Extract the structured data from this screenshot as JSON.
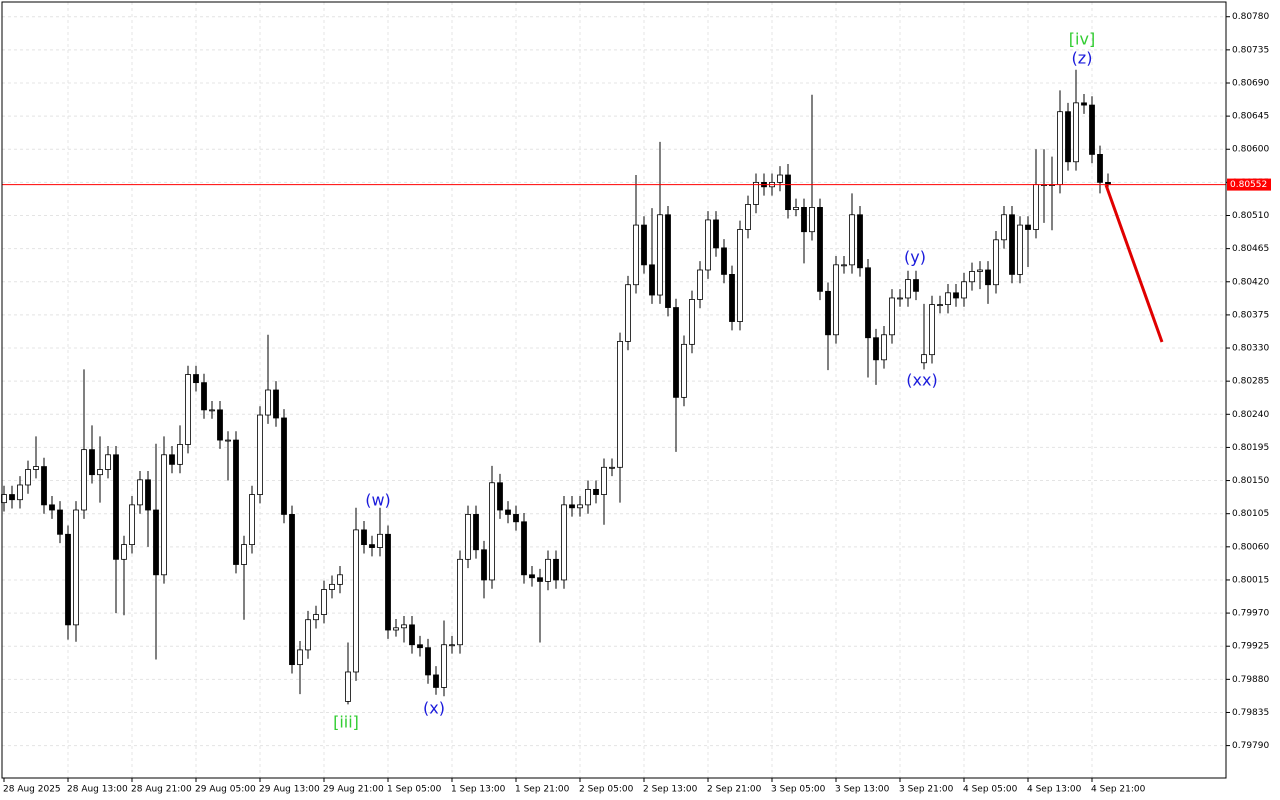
{
  "chart_data": {
    "type": "candlestick",
    "categories": [
      "28 Aug 2025",
      null,
      null,
      null,
      null,
      null,
      null,
      null,
      "28 Aug 13:00",
      null,
      null,
      null,
      null,
      null,
      null,
      null,
      "28 Aug 21:00",
      null,
      null,
      null,
      null,
      null,
      null,
      null,
      "29 Aug 05:00",
      null,
      null,
      null,
      null,
      null,
      null,
      null,
      "29 Aug 13:00",
      null,
      null,
      null,
      null,
      null,
      null,
      null,
      "29 Aug 21:00",
      null,
      null,
      null,
      null,
      null,
      null,
      null,
      "1 Sep 05:00",
      null,
      null,
      null,
      null,
      null,
      null,
      null,
      "1 Sep 13:00",
      null,
      null,
      null,
      null,
      null,
      null,
      null,
      "1 Sep 21:00",
      null,
      null,
      null,
      null,
      null,
      null,
      null,
      "2 Sep 05:00",
      null,
      null,
      null,
      null,
      null,
      null,
      null,
      "2 Sep 13:00",
      null,
      null,
      null,
      null,
      null,
      null,
      null,
      "2 Sep 21:00",
      null,
      null,
      null,
      null,
      null,
      null,
      null,
      "3 Sep 05:00",
      null,
      null,
      null,
      null,
      null,
      null,
      null,
      "3 Sep 13:00",
      null,
      null,
      null,
      null,
      null,
      null,
      null,
      "3 Sep 21:00",
      null,
      null,
      null,
      null,
      null,
      null,
      null,
      "4 Sep 05:00",
      null,
      null,
      null,
      null,
      null,
      null,
      null,
      "4 Sep 13:00",
      null,
      null,
      null,
      null,
      null,
      null,
      null,
      "4 Sep 21:00",
      null,
      null
    ],
    "open": [
      0.8012,
      0.80131,
      0.80124,
      0.80144,
      0.80165,
      0.80169,
      0.80117,
      0.8011,
      0.80077,
      0.79954,
      0.8011,
      0.80192,
      0.80158,
      0.80165,
      0.80185,
      0.80043,
      0.80063,
      0.80117,
      0.80151,
      0.8011,
      0.80022,
      0.80185,
      0.80172,
      0.80199,
      0.80294,
      0.80283,
      0.80246,
      0.80246,
      0.80205,
      0.80205,
      0.80036,
      0.80063,
      0.80131,
      0.80239,
      0.80273,
      0.80235,
      0.80104,
      0.799,
      0.7992,
      0.79961,
      0.79968,
      0.80002,
      0.80009,
      0.7985,
      0.7989,
      0.80083,
      0.80063,
      0.80059,
      0.80077,
      0.79947,
      0.7995,
      0.79954,
      0.79927,
      0.79923,
      0.79886,
      0.79869,
      0.79927,
      0.79927,
      0.80043,
      0.80104,
      0.80056,
      0.80015,
      0.80147,
      0.8011,
      0.80104,
      0.80094,
      0.80022,
      0.80018,
      0.80013,
      0.80043,
      0.80015,
      0.80117,
      0.80113,
      0.80117,
      0.80138,
      0.80131,
      0.80168,
      0.80168,
      0.80339,
      0.80416,
      0.80497,
      0.80443,
      0.80402,
      0.80511,
      0.80385,
      0.80263,
      0.80335,
      0.80396,
      0.80436,
      0.80504,
      0.80466,
      0.8043,
      0.80366,
      0.80491,
      0.80525,
      0.80555,
      0.80549,
      0.80555,
      0.80565,
      0.80518,
      0.80521,
      0.80488,
      0.80521,
      0.80407,
      0.80348,
      0.80443,
      0.80443,
      0.80511,
      0.80439,
      0.80344,
      0.80314,
      0.80348,
      0.80398,
      0.80398,
      0.80423,
      0.8031,
      0.80321,
      0.80389,
      0.80389,
      0.80405,
      0.80398,
      0.8042,
      0.80434,
      0.80436,
      0.80416,
      0.80477,
      0.80511,
      0.8043,
      0.80497,
      0.80491,
      0.80552,
      0.80552,
      0.80552,
      0.80651,
      0.80583,
      0.80663,
      0.8066,
      0.80593,
      0.80555
    ],
    "high": [
      0.80143,
      0.80143,
      0.80156,
      0.80177,
      0.8021,
      0.80181,
      0.80129,
      0.80122,
      0.80089,
      0.80122,
      0.80301,
      0.80225,
      0.8021,
      0.80197,
      0.80197,
      0.80075,
      0.80129,
      0.80163,
      0.80163,
      0.802,
      0.8021,
      0.80197,
      0.80225,
      0.80306,
      0.80306,
      0.80295,
      0.80258,
      0.80258,
      0.80217,
      0.80217,
      0.80075,
      0.80143,
      0.80251,
      0.80348,
      0.80285,
      0.80247,
      0.80116,
      0.79932,
      0.79973,
      0.7998,
      0.80014,
      0.80021,
      0.80034,
      0.7993,
      0.80113,
      0.80095,
      0.80075,
      0.80113,
      0.80089,
      0.79962,
      0.79966,
      0.79966,
      0.79939,
      0.79935,
      0.79898,
      0.7996,
      0.79939,
      0.80055,
      0.80116,
      0.80116,
      0.80068,
      0.8017,
      0.80159,
      0.80122,
      0.80116,
      0.80106,
      0.80034,
      0.8003,
      0.80055,
      0.80055,
      0.80129,
      0.80129,
      0.80129,
      0.8015,
      0.8015,
      0.8018,
      0.8018,
      0.80351,
      0.80428,
      0.80565,
      0.80509,
      0.8052,
      0.8061,
      0.80523,
      0.80397,
      0.80347,
      0.80408,
      0.80448,
      0.80516,
      0.80516,
      0.80478,
      0.80442,
      0.80503,
      0.80537,
      0.80567,
      0.80567,
      0.80567,
      0.80577,
      0.8058,
      0.80533,
      0.80533,
      0.80674,
      0.80533,
      0.80419,
      0.80455,
      0.80455,
      0.8054,
      0.80523,
      0.80451,
      0.80356,
      0.8036,
      0.8041,
      0.8041,
      0.80435,
      0.80435,
      0.8039,
      0.80401,
      0.80401,
      0.80417,
      0.80417,
      0.80432,
      0.80446,
      0.80448,
      0.80448,
      0.80489,
      0.80523,
      0.80523,
      0.80509,
      0.80509,
      0.806,
      0.806,
      0.8059,
      0.8068,
      0.80663,
      0.80708,
      0.80675,
      0.80672,
      0.80605,
      0.80567
    ],
    "low": [
      0.80108,
      0.80112,
      0.80112,
      0.80132,
      0.80153,
      0.80105,
      0.80098,
      0.80065,
      0.79934,
      0.79931,
      0.80098,
      0.80146,
      0.8012,
      0.80153,
      0.7997,
      0.79967,
      0.80051,
      0.80105,
      0.8006,
      0.79907,
      0.8001,
      0.8016,
      0.8016,
      0.80187,
      0.80271,
      0.80234,
      0.80234,
      0.80193,
      0.8015,
      0.80024,
      0.79961,
      0.80051,
      0.80119,
      0.80227,
      0.80223,
      0.80092,
      0.79888,
      0.7986,
      0.79908,
      0.79949,
      0.79956,
      0.7999,
      0.79997,
      0.79846,
      0.79878,
      0.80051,
      0.80047,
      0.80047,
      0.79935,
      0.79938,
      0.7993,
      0.79915,
      0.79911,
      0.79874,
      0.79859,
      0.79857,
      0.79915,
      0.79915,
      0.80031,
      0.80044,
      0.7999,
      0.80003,
      0.80098,
      0.80092,
      0.80082,
      0.8001,
      0.80006,
      0.7993,
      0.80001,
      0.80003,
      0.80003,
      0.80101,
      0.80101,
      0.80105,
      0.80119,
      0.8009,
      0.80156,
      0.8012,
      0.80327,
      0.80404,
      0.80431,
      0.8039,
      0.8039,
      0.80373,
      0.80189,
      0.80251,
      0.80323,
      0.80384,
      0.80424,
      0.80454,
      0.80418,
      0.80354,
      0.80354,
      0.80479,
      0.80513,
      0.80537,
      0.80537,
      0.80543,
      0.80506,
      0.80509,
      0.80445,
      0.80476,
      0.80395,
      0.803,
      0.80336,
      0.80431,
      0.80431,
      0.80427,
      0.8029,
      0.8028,
      0.80302,
      0.80336,
      0.80386,
      0.80386,
      0.80395,
      0.80301,
      0.80309,
      0.80377,
      0.80377,
      0.80386,
      0.80386,
      0.80408,
      0.8041,
      0.8039,
      0.80404,
      0.80465,
      0.80418,
      0.80418,
      0.8044,
      0.80479,
      0.805,
      0.8049,
      0.8054,
      0.80571,
      0.80571,
      0.80648,
      0.80581,
      0.8054,
      0.8054
    ],
    "close": [
      0.80131,
      0.80124,
      0.80144,
      0.80165,
      0.80169,
      0.80117,
      0.8011,
      0.80077,
      0.79954,
      0.8011,
      0.80192,
      0.80158,
      0.80165,
      0.80185,
      0.80043,
      0.80063,
      0.80117,
      0.80151,
      0.8011,
      0.80022,
      0.80185,
      0.80172,
      0.80199,
      0.80294,
      0.80283,
      0.80246,
      0.80246,
      0.80205,
      0.80205,
      0.80036,
      0.80063,
      0.80131,
      0.80239,
      0.80273,
      0.80235,
      0.80104,
      0.799,
      0.7992,
      0.79961,
      0.79968,
      0.80002,
      0.80009,
      0.80022,
      0.7989,
      0.80083,
      0.80063,
      0.80059,
      0.80077,
      0.79947,
      0.7995,
      0.79954,
      0.79927,
      0.79923,
      0.79886,
      0.79869,
      0.79927,
      0.79927,
      0.80043,
      0.80104,
      0.80056,
      0.80015,
      0.80147,
      0.8011,
      0.80104,
      0.80094,
      0.80022,
      0.80018,
      0.80013,
      0.80043,
      0.80015,
      0.80117,
      0.80113,
      0.80117,
      0.80138,
      0.80131,
      0.80168,
      0.80168,
      0.80339,
      0.80416,
      0.80497,
      0.80443,
      0.80402,
      0.80511,
      0.80385,
      0.80263,
      0.80335,
      0.80396,
      0.80436,
      0.80504,
      0.80466,
      0.8043,
      0.80366,
      0.80491,
      0.80525,
      0.80555,
      0.80549,
      0.80555,
      0.80565,
      0.80518,
      0.80521,
      0.80488,
      0.80521,
      0.80407,
      0.80348,
      0.80443,
      0.80443,
      0.80511,
      0.80439,
      0.80344,
      0.80314,
      0.80348,
      0.80398,
      0.80398,
      0.80423,
      0.80407,
      0.80321,
      0.80389,
      0.80389,
      0.80405,
      0.80398,
      0.8042,
      0.80434,
      0.80436,
      0.80416,
      0.80477,
      0.80511,
      0.8043,
      0.80497,
      0.80491,
      0.80552,
      0.80552,
      0.80552,
      0.80651,
      0.80583,
      0.80663,
      0.8066,
      0.80593,
      0.80555,
      0.80552
    ],
    "up_color": "#ffffff",
    "down_color": "#000000",
    "ylim": [
      0.79746,
      0.808
    ],
    "yticks": [
      {
        "value": 0.7979,
        "label": "0.79790"
      },
      {
        "value": 0.79835,
        "label": "0.79835"
      },
      {
        "value": 0.7988,
        "label": "0.79880"
      },
      {
        "value": 0.79925,
        "label": "0.79925"
      },
      {
        "value": 0.7997,
        "label": "0.79970"
      },
      {
        "value": 0.80015,
        "label": "0.80015"
      },
      {
        "value": 0.8006,
        "label": "0.80060"
      },
      {
        "value": 0.80105,
        "label": "0.80105"
      },
      {
        "value": 0.8015,
        "label": "0.80150"
      },
      {
        "value": 0.80195,
        "label": "0.80195"
      },
      {
        "value": 0.8024,
        "label": "0.80240"
      },
      {
        "value": 0.80285,
        "label": "0.80285"
      },
      {
        "value": 0.8033,
        "label": "0.80330"
      },
      {
        "value": 0.80375,
        "label": "0.80375"
      },
      {
        "value": 0.8042,
        "label": "0.80420"
      },
      {
        "value": 0.80465,
        "label": "0.80465"
      },
      {
        "value": 0.8051,
        "label": "0.80510"
      },
      {
        "value": 0.80555,
        "label": "0.80555"
      },
      {
        "value": 0.806,
        "label": "0.80600"
      },
      {
        "value": 0.80645,
        "label": "0.80645"
      },
      {
        "value": 0.8069,
        "label": "0.80690"
      },
      {
        "value": 0.80735,
        "label": "0.80735"
      },
      {
        "value": 0.8078,
        "label": "0.80780"
      }
    ],
    "grid": true,
    "current_price": 0.80552,
    "current_price_color": "#ff0000",
    "annotations": [
      {
        "text": "[iv]",
        "color": "#32cd32"
      },
      {
        "text": "(z)",
        "color": "#1a1adb"
      },
      {
        "text": "(w)",
        "color": "#1a1adb"
      },
      {
        "text": "(y)",
        "color": "#1a1adb"
      },
      {
        "text": "(xx)",
        "color": "#1a1adb"
      },
      {
        "text": "(x)",
        "color": "#1a1adb"
      },
      {
        "text": "[iii]",
        "color": "#32cd32"
      }
    ]
  }
}
